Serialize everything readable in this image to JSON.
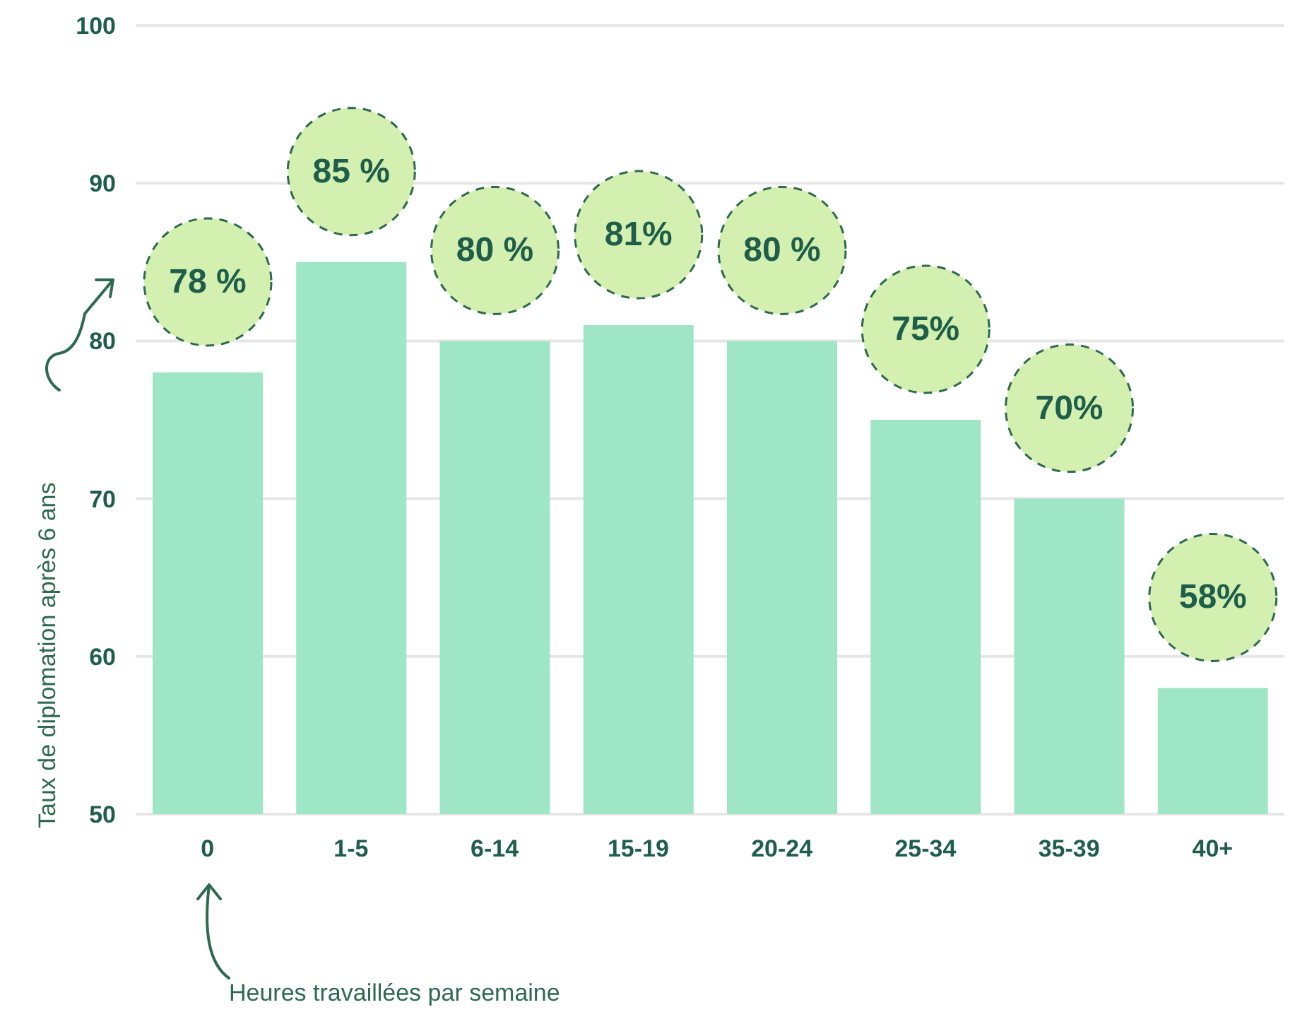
{
  "chart_data": {
    "type": "bar",
    "xlabel": "Heures travaillées par semaine",
    "ylabel": "Taux de diplomation après 6 ans",
    "categories": [
      "0",
      "1-5",
      "6-14",
      "15-19",
      "20-24",
      "25-34",
      "35-39",
      "40+"
    ],
    "values": [
      78,
      85,
      80,
      81,
      80,
      75,
      70,
      58
    ],
    "value_labels": [
      "78 %",
      "85 %",
      "80 %",
      "81%",
      "80 %",
      "75%",
      "70%",
      "58%"
    ],
    "color": "#9fe6c6",
    "ylim": [
      50,
      100
    ],
    "yticks": [
      50,
      60,
      70,
      80,
      90,
      100
    ],
    "grid": "y",
    "legend": false
  }
}
